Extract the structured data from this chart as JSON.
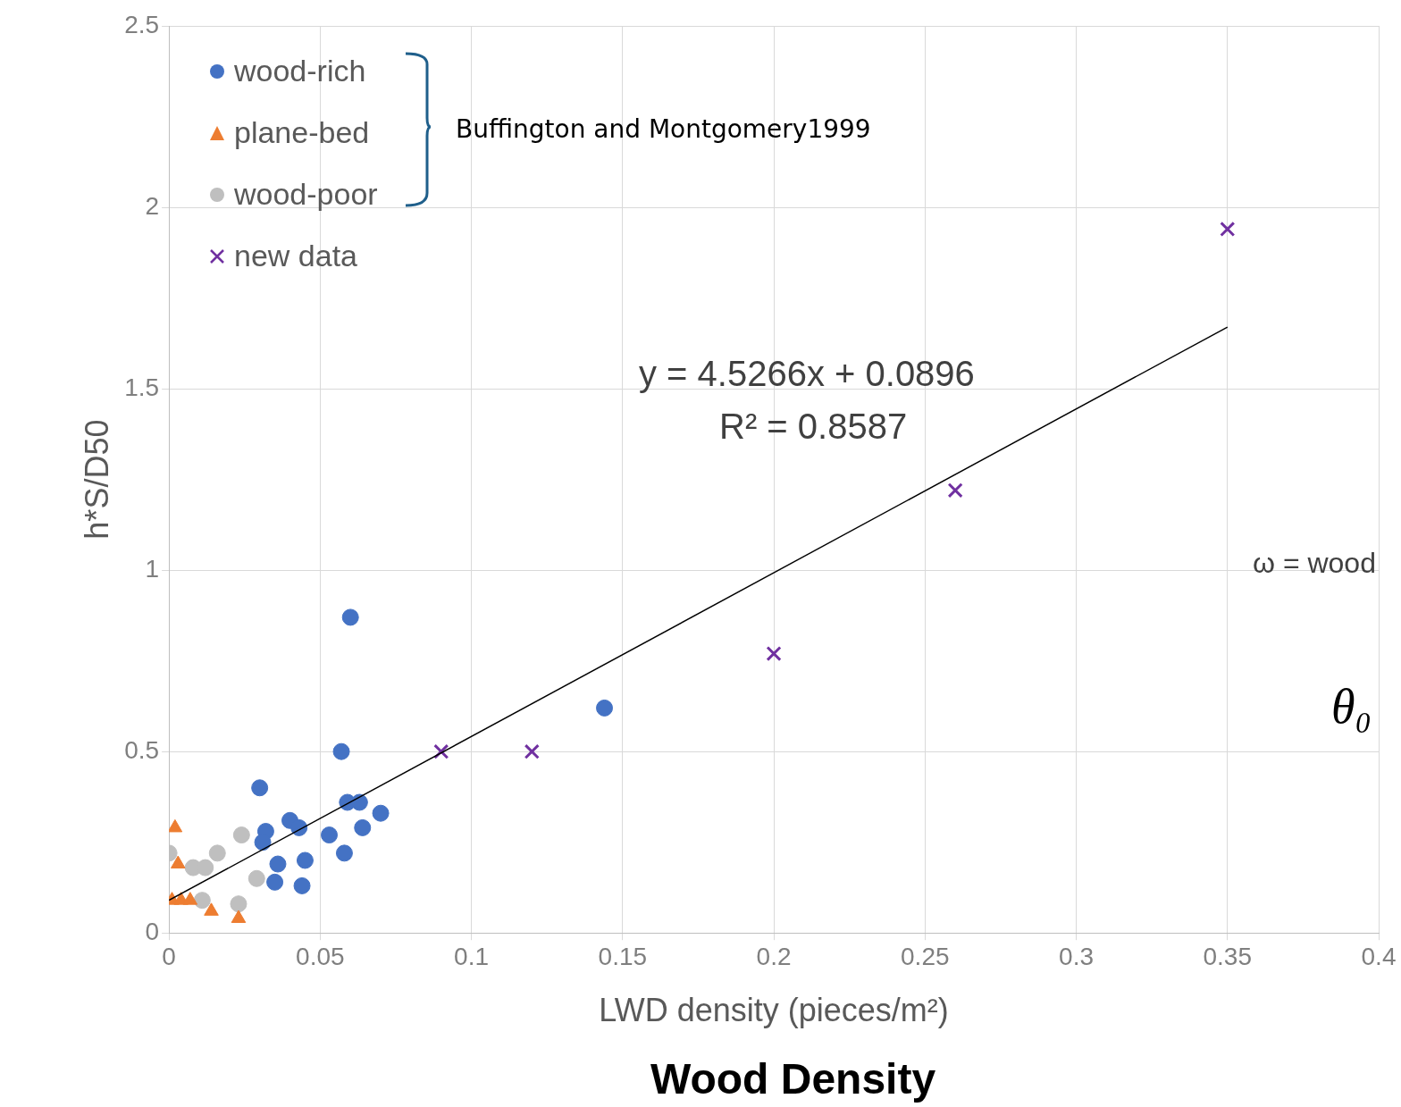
{
  "chart_data": {
    "type": "scatter",
    "xlabel": "LWD density (pieces/m²)",
    "ylabel": "h*S/D50",
    "xlim": [
      0,
      0.4
    ],
    "xticks": [
      0,
      0.05,
      0.1,
      0.15,
      0.2,
      0.25,
      0.3,
      0.35,
      0.4
    ],
    "ylim": [
      0,
      2.5
    ],
    "yticks": [
      0,
      0.5,
      1,
      1.5,
      2,
      2.5
    ],
    "grid": true,
    "legend": "top left",
    "series": [
      {
        "name": "wood-rich",
        "color": "#4472c4",
        "marker": "circle",
        "x": [
          0.03,
          0.032,
          0.031,
          0.036,
          0.035,
          0.04,
          0.043,
          0.045,
          0.044,
          0.053,
          0.058,
          0.059,
          0.063,
          0.064,
          0.07,
          0.06,
          0.057,
          0.144
        ],
        "values": [
          0.4,
          0.28,
          0.25,
          0.19,
          0.14,
          0.31,
          0.29,
          0.2,
          0.13,
          0.27,
          0.22,
          0.36,
          0.36,
          0.29,
          0.33,
          0.87,
          0.5,
          0.62
        ]
      },
      {
        "name": "plane-bed",
        "color": "#ed7d31",
        "marker": "triangle",
        "x": [
          0.002,
          0.003,
          0.001,
          0.004,
          0.007,
          0.014,
          0.023
        ],
        "values": [
          0.29,
          0.19,
          0.09,
          0.09,
          0.09,
          0.06,
          0.04
        ]
      },
      {
        "name": "wood-poor",
        "color": "#bfbfbf",
        "marker": "circle",
        "x": [
          0.0,
          0.008,
          0.012,
          0.016,
          0.024,
          0.029,
          0.023,
          0.011
        ],
        "values": [
          0.22,
          0.18,
          0.18,
          0.22,
          0.27,
          0.15,
          0.08,
          0.09
        ]
      },
      {
        "name": "new data",
        "color": "#7030a0",
        "marker": "cross",
        "x": [
          0.09,
          0.12,
          0.2,
          0.26,
          0.35
        ],
        "values": [
          0.5,
          0.5,
          0.77,
          1.22,
          1.94
        ]
      },
      {
        "type": "line",
        "color": "#000000",
        "marker": "none",
        "x": [
          0,
          0.35
        ],
        "values": [
          0.09,
          1.67
        ]
      }
    ],
    "annotations": [
      "Buffington and Montgomery1999",
      "y = 4.5266x + 0.0896",
      "R² = 0.8587",
      "ω = wood",
      "θ₀",
      "Wood Density"
    ]
  }
}
